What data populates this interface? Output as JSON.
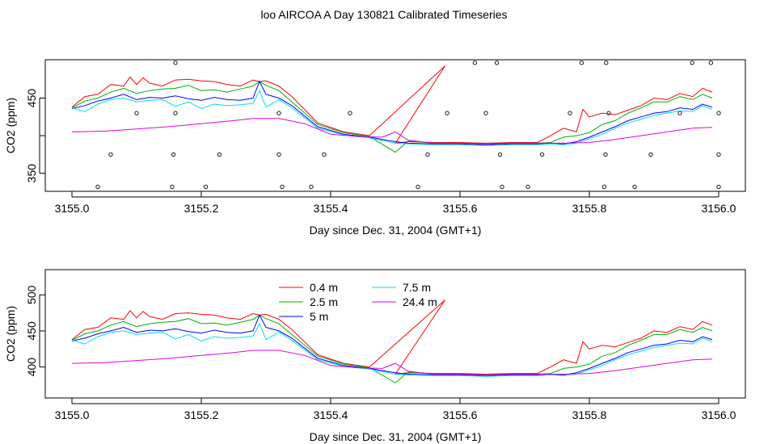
{
  "title": "loo AIRCOA A  Day 130821  Calibrated Timeseries",
  "colors": {
    "0.4 m": "#ff0000",
    "2.5 m": "#00b000",
    "5 m": "#0000ff",
    "7.5 m": "#00e0e0",
    "24.4 m": "#e000e0",
    "axis": "#000000"
  },
  "chart_data": [
    {
      "type": "line",
      "xlabel": "Day since Dec. 31, 2004 (GMT+1)",
      "ylabel": "CO2 (ppm)",
      "xlim": [
        3155.0,
        3156.0
      ],
      "ylim": [
        326,
        501
      ],
      "xticks": [
        3155.0,
        3155.2,
        3155.4,
        3155.6,
        3155.8,
        3156.0
      ],
      "xtick_labels": [
        "3155.0",
        "3155.2",
        "3155.4",
        "3155.6",
        "3155.8",
        "3156.0"
      ],
      "yticks": [
        350,
        400,
        450
      ],
      "ytick_labels": [
        "350",
        "",
        "450"
      ],
      "legend": "none",
      "series": [
        {
          "name": "0.4 m",
          "x": [
            3155.0,
            3155.02,
            3155.04,
            3155.06,
            3155.08,
            3155.09,
            3155.1,
            3155.11,
            3155.12,
            3155.14,
            3155.16,
            3155.18,
            3155.2,
            3155.22,
            3155.24,
            3155.26,
            3155.28,
            3155.29,
            3155.3,
            3155.32,
            3155.34,
            3155.38,
            3155.42,
            3155.46,
            3155.577,
            3155.5,
            3155.52,
            3155.56,
            3155.6,
            3155.64,
            3155.68,
            3155.72,
            3155.74,
            3155.76,
            3155.78,
            3155.79,
            3155.8,
            3155.82,
            3155.84,
            3155.86,
            3155.88,
            3155.9,
            3155.92,
            3155.94,
            3155.96,
            3155.975,
            3155.99
          ],
          "y": [
            438,
            452,
            455,
            468,
            466,
            478,
            468,
            477,
            470,
            466,
            474,
            475,
            473,
            472,
            468,
            466,
            474,
            472,
            473,
            466,
            452,
            417,
            405,
            400,
            493,
            390,
            392,
            391,
            391,
            390,
            391,
            391,
            400,
            410,
            405,
            435,
            425,
            430,
            428,
            434,
            440,
            450,
            448,
            456,
            452,
            463,
            458
          ]
        },
        {
          "name": "2.5 m",
          "x": [
            3155.0,
            3155.02,
            3155.04,
            3155.06,
            3155.08,
            3155.1,
            3155.12,
            3155.14,
            3155.16,
            3155.18,
            3155.2,
            3155.22,
            3155.24,
            3155.26,
            3155.28,
            3155.29,
            3155.3,
            3155.32,
            3155.34,
            3155.38,
            3155.42,
            3155.46,
            3155.5,
            3155.52,
            3155.56,
            3155.6,
            3155.64,
            3155.68,
            3155.72,
            3155.74,
            3155.76,
            3155.78,
            3155.8,
            3155.82,
            3155.84,
            3155.86,
            3155.88,
            3155.9,
            3155.92,
            3155.94,
            3155.96,
            3155.975,
            3155.99
          ],
          "y": [
            437,
            446,
            450,
            458,
            463,
            456,
            460,
            462,
            463,
            467,
            460,
            461,
            458,
            462,
            466,
            472,
            467,
            460,
            445,
            415,
            404,
            399,
            378,
            393,
            390,
            390,
            389,
            390,
            390,
            391,
            398,
            400,
            404,
            415,
            420,
            430,
            437,
            445,
            445,
            452,
            448,
            455,
            450
          ]
        },
        {
          "name": "5 m",
          "x": [
            3155.0,
            3155.02,
            3155.04,
            3155.06,
            3155.08,
            3155.1,
            3155.12,
            3155.14,
            3155.16,
            3155.18,
            3155.2,
            3155.22,
            3155.24,
            3155.26,
            3155.28,
            3155.29,
            3155.3,
            3155.32,
            3155.34,
            3155.38,
            3155.42,
            3155.46,
            3155.5,
            3155.52,
            3155.56,
            3155.6,
            3155.64,
            3155.68,
            3155.72,
            3155.74,
            3155.76,
            3155.78,
            3155.8,
            3155.82,
            3155.84,
            3155.86,
            3155.88,
            3155.9,
            3155.92,
            3155.94,
            3155.96,
            3155.975,
            3155.99
          ],
          "y": [
            436,
            440,
            446,
            450,
            455,
            448,
            451,
            450,
            453,
            449,
            447,
            451,
            448,
            447,
            450,
            472,
            455,
            450,
            440,
            412,
            402,
            398,
            392,
            390,
            389,
            389,
            388,
            389,
            389,
            390,
            389,
            392,
            398,
            405,
            412,
            420,
            425,
            430,
            432,
            437,
            435,
            442,
            438
          ]
        },
        {
          "name": "7.5 m",
          "x": [
            3155.0,
            3155.02,
            3155.04,
            3155.06,
            3155.08,
            3155.1,
            3155.12,
            3155.14,
            3155.16,
            3155.18,
            3155.2,
            3155.22,
            3155.24,
            3155.26,
            3155.28,
            3155.29,
            3155.3,
            3155.32,
            3155.34,
            3155.38,
            3155.42,
            3155.46,
            3155.5,
            3155.52,
            3155.56,
            3155.6,
            3155.64,
            3155.68,
            3155.72,
            3155.74,
            3155.76,
            3155.78,
            3155.8,
            3155.82,
            3155.84,
            3155.86,
            3155.88,
            3155.9,
            3155.92,
            3155.94,
            3155.96,
            3155.975,
            3155.99
          ],
          "y": [
            437,
            432,
            442,
            448,
            450,
            445,
            447,
            448,
            439,
            445,
            436,
            442,
            440,
            441,
            443,
            460,
            438,
            448,
            437,
            410,
            401,
            397,
            390,
            389,
            388,
            388,
            387,
            388,
            388,
            389,
            388,
            390,
            396,
            402,
            410,
            417,
            422,
            427,
            430,
            433,
            432,
            440,
            435
          ]
        },
        {
          "name": "24.4 m",
          "x": [
            3155.0,
            3155.05,
            3155.1,
            3155.15,
            3155.2,
            3155.25,
            3155.28,
            3155.32,
            3155.36,
            3155.4,
            3155.44,
            3155.48,
            3155.5,
            3155.52,
            3155.56,
            3155.6,
            3155.64,
            3155.68,
            3155.72,
            3155.76,
            3155.8,
            3155.84,
            3155.88,
            3155.92,
            3155.96,
            3155.99
          ],
          "y": [
            405,
            406,
            409,
            412,
            416,
            420,
            423,
            423,
            416,
            402,
            399,
            398,
            405,
            394,
            390,
            390,
            389,
            390,
            390,
            390,
            391,
            395,
            400,
            405,
            410,
            411
          ]
        }
      ],
      "annotations": [
        {
          "type": "points",
          "name": "open-circle-markers",
          "x": [
            3155.16,
            3155.623,
            3155.657,
            3155.788,
            3155.826,
            3155.959,
            3155.988,
            3155.1,
            3155.16,
            3155.32,
            3155.43,
            3155.58,
            3155.64,
            3155.77,
            3155.83,
            3155.94,
            3156.0,
            3155.06,
            3155.157,
            3155.228,
            3155.32,
            3155.39,
            3155.55,
            3155.662,
            3155.727,
            3155.825,
            3155.895,
            3156.0,
            3155.04,
            3155.155,
            3155.207,
            3155.325,
            3155.37,
            3155.535,
            3155.665,
            3155.705,
            3155.823,
            3155.87,
            3156.0
          ],
          "y": [
            497,
            497,
            497,
            497,
            497,
            497,
            497,
            430,
            430,
            430,
            430,
            430,
            430,
            430,
            430,
            430,
            430,
            375,
            375,
            375,
            375,
            375,
            375,
            375,
            375,
            375,
            375,
            375,
            332,
            332,
            332,
            332,
            332,
            332,
            332,
            332,
            332,
            332,
            332
          ]
        }
      ]
    },
    {
      "type": "line",
      "xlabel": "Day since Dec. 31, 2004 (GMT+1)",
      "ylabel": "CO2 (ppm)",
      "xlim": [
        3155.0,
        3156.0
      ],
      "ylim": [
        357,
        535
      ],
      "xticks": [
        3155.0,
        3155.2,
        3155.4,
        3155.6,
        3155.8,
        3156.0
      ],
      "xtick_labels": [
        "3155.0",
        "3155.2",
        "3155.4",
        "3155.6",
        "3155.8",
        "3156.0"
      ],
      "yticks": [
        400,
        450,
        500
      ],
      "ytick_labels": [
        "400",
        "450",
        "500"
      ],
      "legend": "top-center",
      "series": [
        {
          "name": "0.4 m",
          "x": [
            3155.0,
            3155.02,
            3155.04,
            3155.06,
            3155.08,
            3155.09,
            3155.1,
            3155.11,
            3155.12,
            3155.14,
            3155.16,
            3155.18,
            3155.2,
            3155.22,
            3155.24,
            3155.26,
            3155.28,
            3155.29,
            3155.3,
            3155.32,
            3155.34,
            3155.38,
            3155.42,
            3155.46,
            3155.577,
            3155.5,
            3155.52,
            3155.56,
            3155.6,
            3155.64,
            3155.68,
            3155.72,
            3155.74,
            3155.76,
            3155.78,
            3155.79,
            3155.8,
            3155.82,
            3155.84,
            3155.86,
            3155.88,
            3155.9,
            3155.92,
            3155.94,
            3155.96,
            3155.975,
            3155.99
          ],
          "y": [
            438,
            452,
            455,
            468,
            466,
            478,
            468,
            477,
            470,
            466,
            474,
            475,
            473,
            472,
            468,
            466,
            474,
            472,
            473,
            466,
            452,
            417,
            405,
            400,
            493,
            390,
            392,
            391,
            391,
            390,
            391,
            391,
            400,
            410,
            405,
            435,
            425,
            430,
            428,
            434,
            440,
            450,
            448,
            456,
            452,
            463,
            458
          ]
        },
        {
          "name": "2.5 m",
          "x": [
            3155.0,
            3155.02,
            3155.04,
            3155.06,
            3155.08,
            3155.1,
            3155.12,
            3155.14,
            3155.16,
            3155.18,
            3155.2,
            3155.22,
            3155.24,
            3155.26,
            3155.28,
            3155.29,
            3155.3,
            3155.32,
            3155.34,
            3155.38,
            3155.42,
            3155.46,
            3155.5,
            3155.52,
            3155.56,
            3155.6,
            3155.64,
            3155.68,
            3155.72,
            3155.74,
            3155.76,
            3155.78,
            3155.8,
            3155.82,
            3155.84,
            3155.86,
            3155.88,
            3155.9,
            3155.92,
            3155.94,
            3155.96,
            3155.975,
            3155.99
          ],
          "y": [
            437,
            446,
            450,
            458,
            463,
            456,
            460,
            462,
            463,
            467,
            460,
            461,
            458,
            462,
            466,
            472,
            467,
            460,
            445,
            415,
            404,
            399,
            378,
            393,
            390,
            390,
            389,
            390,
            390,
            391,
            398,
            400,
            404,
            415,
            420,
            430,
            437,
            445,
            445,
            452,
            448,
            455,
            450
          ]
        },
        {
          "name": "5 m",
          "x": [
            3155.0,
            3155.02,
            3155.04,
            3155.06,
            3155.08,
            3155.1,
            3155.12,
            3155.14,
            3155.16,
            3155.18,
            3155.2,
            3155.22,
            3155.24,
            3155.26,
            3155.28,
            3155.29,
            3155.3,
            3155.32,
            3155.34,
            3155.38,
            3155.42,
            3155.46,
            3155.5,
            3155.52,
            3155.56,
            3155.6,
            3155.64,
            3155.68,
            3155.72,
            3155.74,
            3155.76,
            3155.78,
            3155.8,
            3155.82,
            3155.84,
            3155.86,
            3155.88,
            3155.9,
            3155.92,
            3155.94,
            3155.96,
            3155.975,
            3155.99
          ],
          "y": [
            436,
            440,
            446,
            450,
            455,
            448,
            451,
            450,
            453,
            449,
            447,
            451,
            448,
            447,
            450,
            472,
            455,
            450,
            440,
            412,
            402,
            398,
            392,
            390,
            389,
            389,
            388,
            389,
            389,
            390,
            389,
            392,
            398,
            405,
            412,
            420,
            425,
            430,
            432,
            437,
            435,
            442,
            438
          ]
        },
        {
          "name": "7.5 m",
          "x": [
            3155.0,
            3155.02,
            3155.04,
            3155.06,
            3155.08,
            3155.1,
            3155.12,
            3155.14,
            3155.16,
            3155.18,
            3155.2,
            3155.22,
            3155.24,
            3155.26,
            3155.28,
            3155.29,
            3155.3,
            3155.32,
            3155.34,
            3155.38,
            3155.42,
            3155.46,
            3155.5,
            3155.52,
            3155.56,
            3155.6,
            3155.64,
            3155.68,
            3155.72,
            3155.74,
            3155.76,
            3155.78,
            3155.8,
            3155.82,
            3155.84,
            3155.86,
            3155.88,
            3155.9,
            3155.92,
            3155.94,
            3155.96,
            3155.975,
            3155.99
          ],
          "y": [
            437,
            432,
            442,
            448,
            450,
            445,
            447,
            448,
            439,
            445,
            436,
            442,
            440,
            441,
            443,
            460,
            438,
            448,
            437,
            410,
            401,
            397,
            390,
            389,
            388,
            388,
            387,
            388,
            388,
            389,
            388,
            390,
            396,
            402,
            410,
            417,
            422,
            427,
            430,
            433,
            432,
            440,
            435
          ]
        },
        {
          "name": "24.4 m",
          "x": [
            3155.0,
            3155.05,
            3155.1,
            3155.15,
            3155.2,
            3155.25,
            3155.28,
            3155.32,
            3155.36,
            3155.4,
            3155.44,
            3155.48,
            3155.5,
            3155.52,
            3155.56,
            3155.6,
            3155.64,
            3155.68,
            3155.72,
            3155.76,
            3155.8,
            3155.84,
            3155.88,
            3155.92,
            3155.96,
            3155.99
          ],
          "y": [
            405,
            406,
            409,
            412,
            416,
            420,
            423,
            423,
            416,
            402,
            399,
            398,
            405,
            394,
            390,
            390,
            389,
            390,
            390,
            390,
            391,
            395,
            400,
            405,
            410,
            411
          ]
        }
      ]
    }
  ]
}
